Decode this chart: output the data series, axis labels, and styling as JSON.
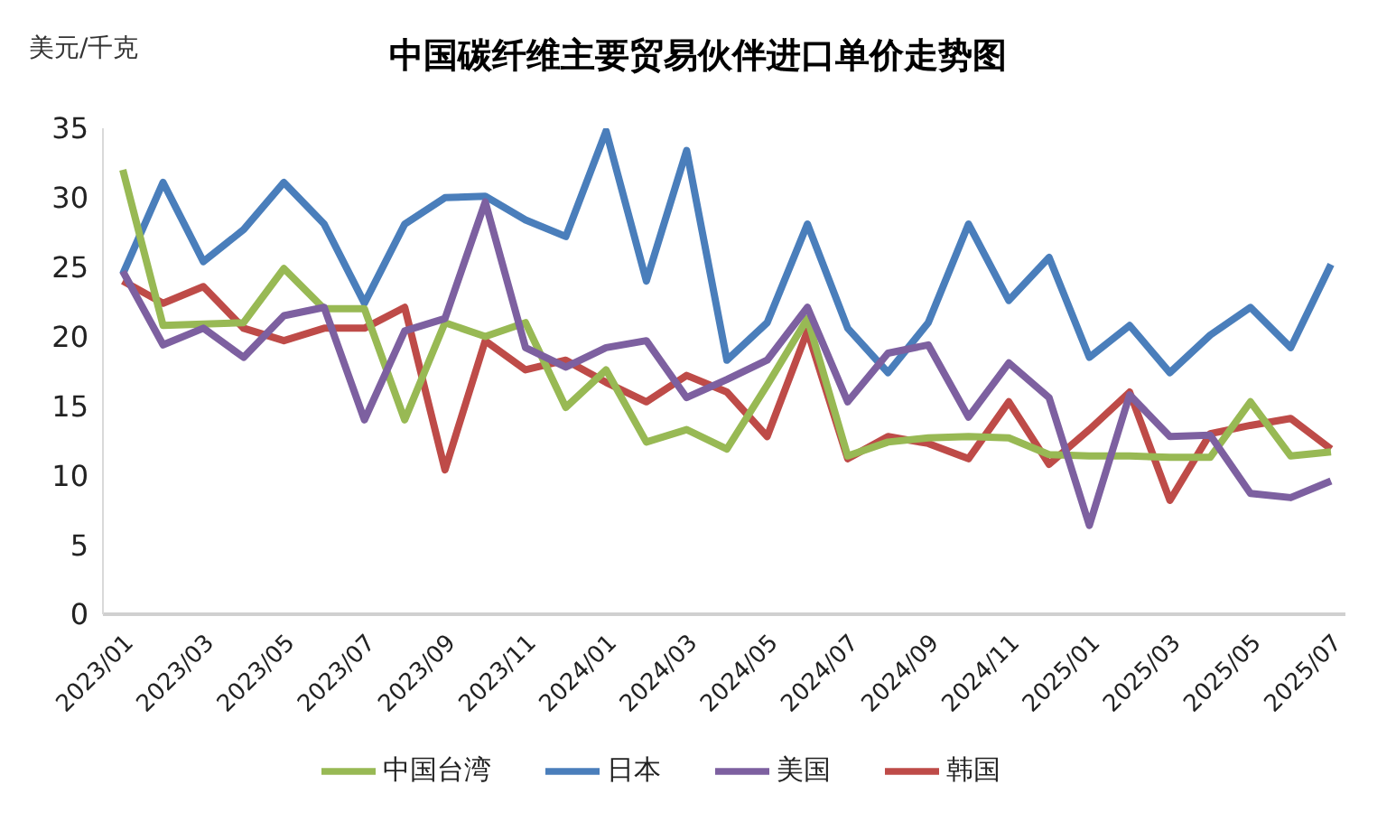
{
  "chart_data": {
    "type": "line",
    "title": "中国碳纤维主要贸易伙伴进口单价走势图",
    "ylabel": "美元/千克",
    "categories": [
      "2023/01",
      null,
      "2023/03",
      null,
      "2023/05",
      null,
      "2023/07",
      null,
      "2023/09",
      null,
      "2023/11",
      null,
      "2024/01",
      null,
      "2024/03",
      null,
      "2024/05",
      null,
      "2024/07",
      null,
      "2024/09",
      null,
      "2024/11",
      null,
      "2025/01",
      null,
      "2025/03",
      null,
      "2025/05",
      null,
      "2025/07"
    ],
    "series": [
      {
        "name": "日本",
        "color": "#4a7ebb",
        "values": [
          24.5,
          31.1,
          25.4,
          27.7,
          31.1,
          28.1,
          22.4,
          28.1,
          30,
          30.1,
          28.4,
          27.2,
          34.8,
          24,
          33.4,
          18.3,
          21,
          28.1,
          20.6,
          17.4,
          21,
          28.1,
          22.6,
          25.7,
          18.5,
          20.8,
          17.4,
          20.1,
          22.1,
          19.2,
          25.2
        ]
      },
      {
        "name": "韩国",
        "color": "#be4b48",
        "values": [
          24,
          22.4,
          23.6,
          20.6,
          19.7,
          20.6,
          20.6,
          22.1,
          10.4,
          19.7,
          17.6,
          18.3,
          16.7,
          15.3,
          17.2,
          16,
          12.8,
          20.4,
          11.2,
          12.8,
          12.3,
          11.2,
          15.3,
          10.8,
          13.3,
          16,
          8.2,
          13,
          13.6,
          14.1,
          11.9
        ]
      },
      {
        "name": "中国台湾",
        "color": "#98b954",
        "values": [
          32,
          20.8,
          20.9,
          21,
          24.9,
          22,
          22,
          14,
          21,
          20,
          21,
          14.9,
          17.6,
          12.4,
          13.3,
          11.9,
          16.5,
          21.3,
          11.4,
          12.4,
          12.7,
          12.8,
          12.7,
          11.5,
          11.4,
          11.4,
          11.3,
          11.3,
          15.3,
          11.4,
          11.7
        ]
      },
      {
        "name": "美国",
        "color": "#7d60a0",
        "values": [
          24.7,
          19.4,
          20.6,
          18.5,
          21.5,
          22.1,
          14,
          20.4,
          21.3,
          29.7,
          19.2,
          17.8,
          19.2,
          19.7,
          15.6,
          16.9,
          18.3,
          22.1,
          15.3,
          18.8,
          19.4,
          14.2,
          18.1,
          15.6,
          6.4,
          15.8,
          12.8,
          12.9,
          8.7,
          8.4,
          9.6
        ]
      }
    ],
    "ylim": [
      0,
      35
    ],
    "yticks": [
      0,
      5,
      10,
      15,
      20,
      25,
      30,
      35
    ],
    "grid": false,
    "legend": "bottom",
    "marker": "none",
    "line_style": "solid"
  }
}
